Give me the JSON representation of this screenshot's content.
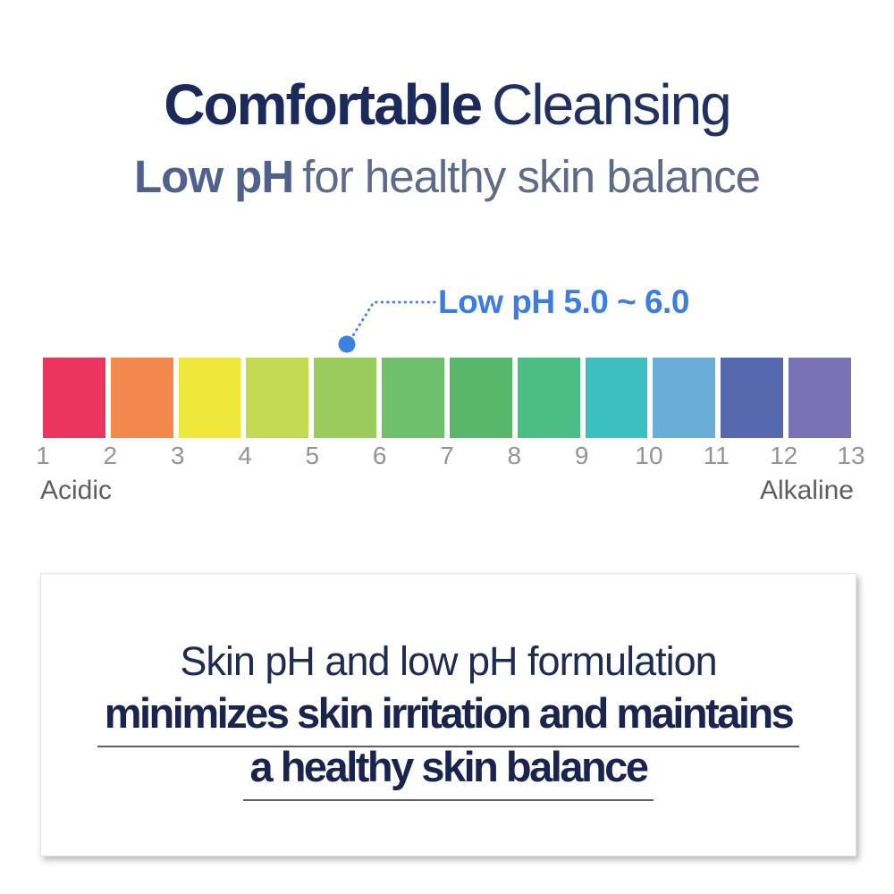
{
  "header": {
    "title_bold": "Comfortable",
    "title_regular": "Cleansing",
    "subtitle_bold": "Low pH",
    "subtitle_regular": "for healthy skin balance"
  },
  "callout": {
    "label": "Low pH 5.0 ~ 6.0",
    "accent_color": "#3b7ede",
    "dot_color": "#3b82e0",
    "leader_line_color": "#4a87e2"
  },
  "ph_scale": {
    "blocks": [
      {
        "color": "#e93560"
      },
      {
        "color": "#f0894b"
      },
      {
        "color": "#eee73c"
      },
      {
        "color": "#c3d952"
      },
      {
        "color": "#9bca5d"
      },
      {
        "color": "#6ec06f"
      },
      {
        "color": "#58b768"
      },
      {
        "color": "#4cbd85"
      },
      {
        "color": "#3dbfc0"
      },
      {
        "color": "#6aaed8"
      },
      {
        "color": "#5669af"
      },
      {
        "color": "#7a71b5"
      }
    ],
    "ticks": [
      "1",
      "2",
      "3",
      "4",
      "5",
      "6",
      "7",
      "8",
      "9",
      "10",
      "11",
      "12",
      "13"
    ],
    "left_label": "Acidic",
    "right_label": "Alkaline"
  },
  "info_box": {
    "line1": "Skin pH and low pH formulation",
    "line2": "minimizes skin irritation and maintains",
    "line3": "a healthy skin balance"
  }
}
